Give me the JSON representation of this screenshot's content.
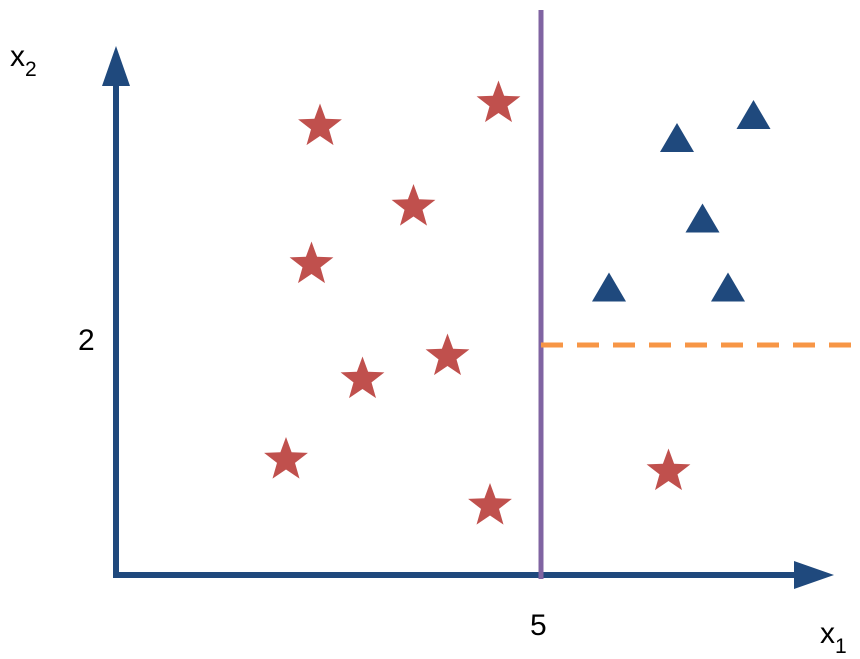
{
  "axes": {
    "x_label": "x",
    "x_sub": "1",
    "y_label": "x",
    "y_sub": "2",
    "x_tick": "5",
    "y_tick": "2"
  },
  "colors": {
    "axis": "#1f497d",
    "star": "#c0504d",
    "triangle": "#1f497d",
    "split_vertical": "#8064a2",
    "split_horizontal": "#f79646"
  },
  "splits": {
    "vertical_x": 5,
    "horizontal_y": 2
  },
  "classes": {
    "stars": [
      {
        "x": 2.4,
        "y": 3.9
      },
      {
        "x": 4.5,
        "y": 4.1
      },
      {
        "x": 3.5,
        "y": 3.2
      },
      {
        "x": 2.3,
        "y": 2.7
      },
      {
        "x": 2.9,
        "y": 1.7
      },
      {
        "x": 3.9,
        "y": 1.9
      },
      {
        "x": 2.0,
        "y": 1.0
      },
      {
        "x": 4.4,
        "y": 0.6
      },
      {
        "x": 6.5,
        "y": 0.9
      }
    ],
    "triangles": [
      {
        "x": 7.5,
        "y": 4.0
      },
      {
        "x": 6.6,
        "y": 3.8
      },
      {
        "x": 6.9,
        "y": 3.1
      },
      {
        "x": 5.8,
        "y": 2.5
      },
      {
        "x": 7.2,
        "y": 2.5
      }
    ]
  }
}
